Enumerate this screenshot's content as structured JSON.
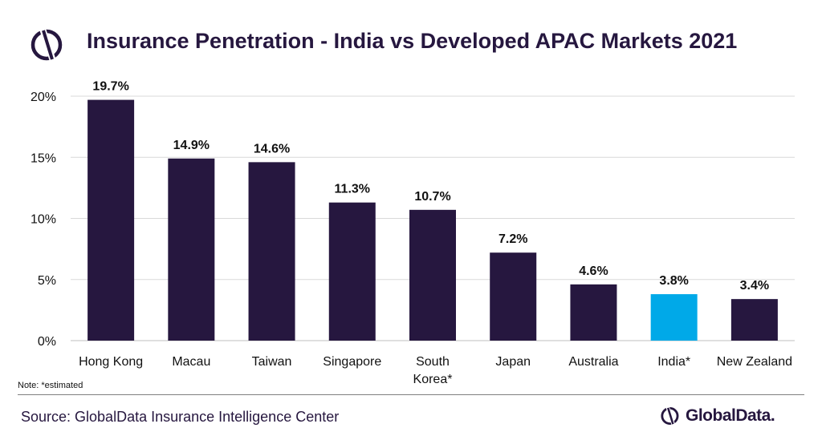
{
  "header": {
    "title": "Insurance Penetration - India vs Developed APAC Markets 2021"
  },
  "footer": {
    "note": "Note: *estimated",
    "source": "Source: GlobalData Insurance Intelligence Center",
    "brand": "GlobalData."
  },
  "colors": {
    "bar_default": "#26173f",
    "bar_highlight": "#00a9e8",
    "title": "#26173f",
    "gridline": "#d9d9d9"
  },
  "chart_data": {
    "type": "bar",
    "title": "Insurance Penetration - India vs Developed APAC Markets 2021",
    "categories": [
      [
        "Hong Kong"
      ],
      [
        "Macau"
      ],
      [
        "Taiwan"
      ],
      [
        "Singapore"
      ],
      [
        "South",
        "Korea*"
      ],
      [
        "Japan"
      ],
      [
        "Australia"
      ],
      [
        "India*"
      ],
      [
        "New Zealand"
      ]
    ],
    "values": [
      19.7,
      14.9,
      14.6,
      11.3,
      10.7,
      7.2,
      4.6,
      3.8,
      3.4
    ],
    "data_labels": [
      "19.7%",
      "14.9%",
      "14.6%",
      "11.3%",
      "10.7%",
      "7.2%",
      "4.6%",
      "3.8%",
      "3.4%"
    ],
    "highlight": "India*",
    "ylim": [
      0,
      20
    ],
    "yticks": [
      0,
      5,
      10,
      15,
      20
    ],
    "ytick_labels": [
      "0%",
      "5%",
      "10%",
      "15%",
      "20%"
    ],
    "grid": true,
    "legend": false
  }
}
